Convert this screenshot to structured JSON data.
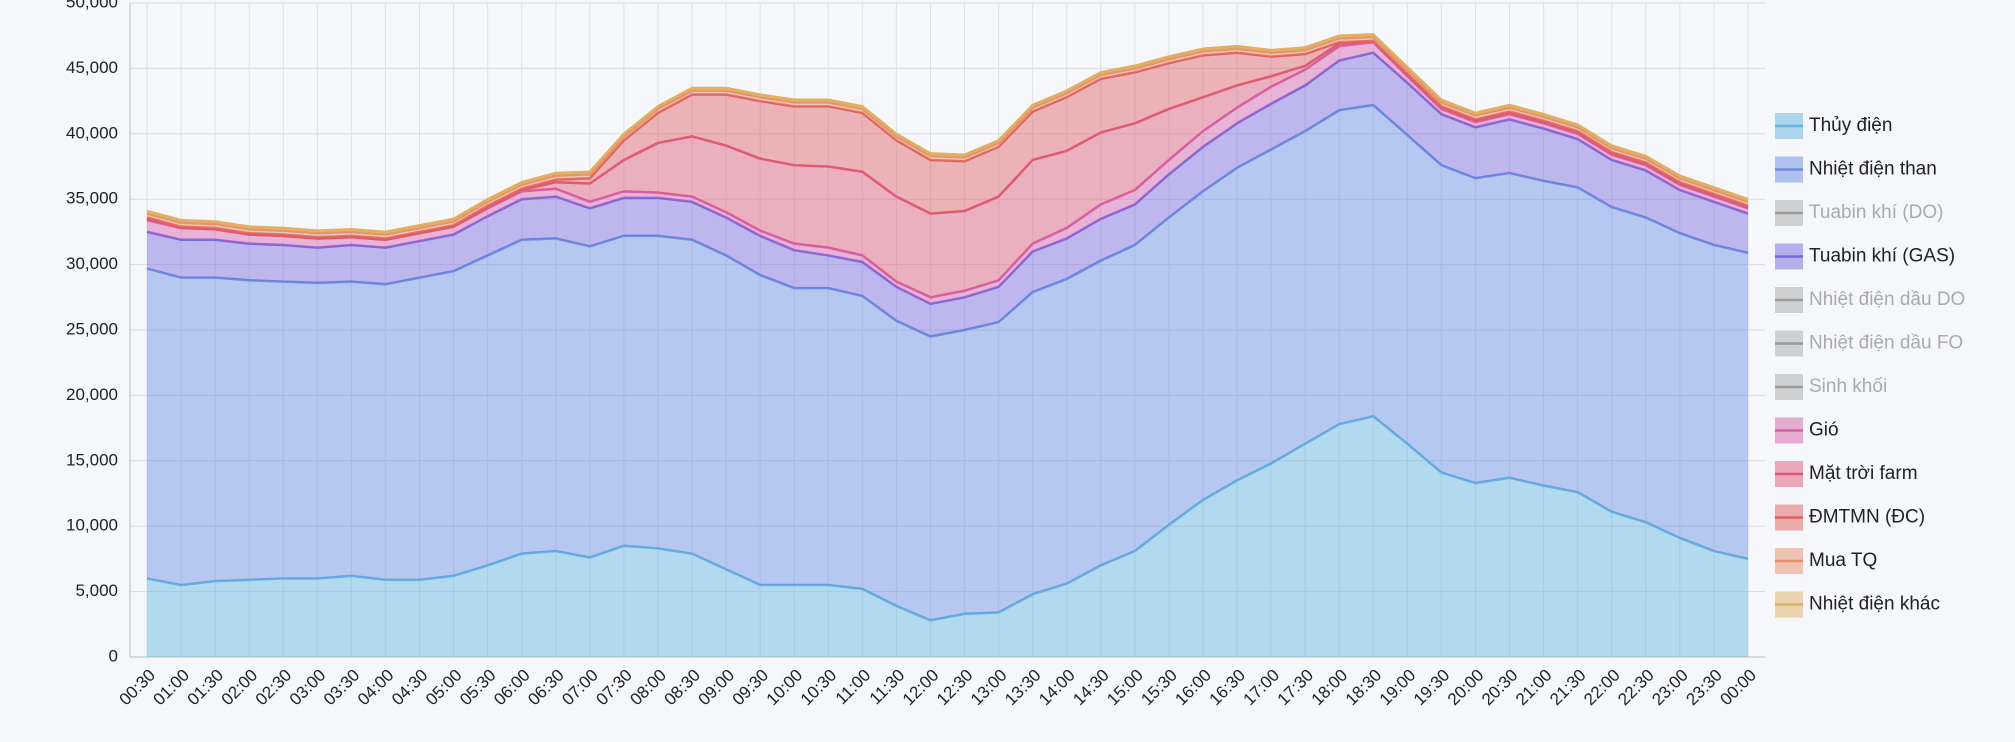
{
  "chart_data": {
    "type": "stacked-area",
    "categories": [
      "00:30",
      "01:00",
      "01:30",
      "02:00",
      "02:30",
      "03:00",
      "03:30",
      "04:00",
      "04:30",
      "05:00",
      "05:30",
      "06:00",
      "06:30",
      "07:00",
      "07:30",
      "08:00",
      "08:30",
      "09:00",
      "09:30",
      "10:00",
      "10:30",
      "11:00",
      "11:30",
      "12:00",
      "12:30",
      "13:00",
      "13:30",
      "14:00",
      "14:30",
      "15:00",
      "15:30",
      "16:00",
      "16:30",
      "17:00",
      "17:30",
      "18:00",
      "18:30",
      "19:00",
      "19:30",
      "20:00",
      "20:30",
      "21:00",
      "21:30",
      "22:00",
      "22:30",
      "23:00",
      "23:30",
      "00:00"
    ],
    "ylim": [
      0,
      50000
    ],
    "yticks": [
      0,
      {
        "value": 5000,
        "label": "5,000"
      },
      {
        "value": 10000,
        "label": "10,000"
      },
      {
        "value": 15000,
        "label": "15,000"
      },
      {
        "value": 20000,
        "label": "20,000"
      },
      {
        "value": 25000,
        "label": "25,000"
      },
      {
        "value": 30000,
        "label": "30,000"
      },
      {
        "value": 35000,
        "label": "35,000"
      },
      {
        "value": 40000,
        "label": "40,000"
      },
      {
        "value": 45000,
        "label": "45,000"
      },
      {
        "value": 50000,
        "label": "50,000"
      }
    ],
    "grid": true,
    "legend": "right",
    "series": [
      {
        "name": "Thủy điện",
        "color": "#63b3e0",
        "values": [
          6000,
          5500,
          5800,
          5900,
          6000,
          6000,
          6200,
          5900,
          5900,
          6200,
          7000,
          7900,
          8100,
          7600,
          8500,
          8300,
          7900,
          6700,
          5500,
          5500,
          5500,
          5200,
          3900,
          2800,
          3300,
          3400,
          4800,
          5600,
          7000,
          8100,
          10100,
          12000,
          13500,
          14800,
          16300,
          17800,
          18400,
          16300,
          14100,
          13300,
          13700,
          13100,
          12600,
          11100,
          10300,
          9100,
          8100,
          7500
        ]
      },
      {
        "name": "Nhiệt điện than",
        "color": "#6a8ee0",
        "values": [
          23700,
          23500,
          23200,
          22900,
          22700,
          22600,
          22500,
          22600,
          23100,
          23300,
          23700,
          24000,
          23900,
          23800,
          23700,
          23900,
          24000,
          24000,
          23700,
          22700,
          22700,
          22400,
          21800,
          21700,
          21700,
          22200,
          23100,
          23300,
          23300,
          23400,
          23500,
          23600,
          23900,
          24000,
          23900,
          24000,
          23800,
          23600,
          23500,
          23300,
          23300,
          23300,
          23300,
          23300,
          23300,
          23300,
          23400,
          23400
        ]
      },
      {
        "name": "Tuabin khí (DO)",
        "color": "#999999",
        "visible": false
      },
      {
        "name": "Tuabin khí (GAS)",
        "color": "#7a68de",
        "values": [
          2800,
          2900,
          2900,
          2800,
          2800,
          2700,
          2800,
          2800,
          2800,
          2800,
          3000,
          3100,
          3200,
          2900,
          2900,
          2900,
          2900,
          2900,
          3000,
          2900,
          2500,
          2600,
          2600,
          2500,
          2500,
          2700,
          3100,
          3100,
          3200,
          3100,
          3300,
          3400,
          3400,
          3500,
          3500,
          3800,
          4000,
          4000,
          3900,
          3900,
          4100,
          4000,
          3700,
          3600,
          3600,
          3300,
          3300,
          3000
        ]
      },
      {
        "name": "Nhiệt điện dầu DO",
        "color": "#999999",
        "visible": false
      },
      {
        "name": "Nhiệt điện dầu FO",
        "color": "#999999",
        "visible": false
      },
      {
        "name": "Sinh khối",
        "color": "#999999",
        "visible": false
      },
      {
        "name": "Gió",
        "color": "#d860a8",
        "values": [
          900,
          900,
          800,
          700,
          700,
          700,
          600,
          600,
          600,
          600,
          600,
          600,
          600,
          500,
          500,
          400,
          400,
          400,
          400,
          500,
          600,
          500,
          400,
          500,
          500,
          500,
          600,
          800,
          1100,
          1100,
          1100,
          1200,
          1200,
          1300,
          1200,
          1100,
          800,
          500,
          400,
          400,
          400,
          400,
          400,
          400,
          400,
          400,
          400,
          400
        ]
      },
      {
        "name": "Mặt trời farm",
        "color": "#e05878",
        "values": [
          100,
          0,
          0,
          0,
          0,
          0,
          0,
          0,
          0,
          0,
          100,
          100,
          500,
          1400,
          2400,
          3800,
          4600,
          5100,
          5500,
          6000,
          6200,
          6400,
          6500,
          6400,
          6100,
          6400,
          6400,
          5900,
          5500,
          5100,
          3900,
          2600,
          1700,
          800,
          300,
          200,
          100,
          100,
          100,
          100,
          100,
          100,
          100,
          100,
          100,
          100,
          100,
          100
        ]
      },
      {
        "name": "ĐMTMN (ĐC)",
        "color": "#e06060",
        "values": [
          100,
          100,
          100,
          100,
          100,
          100,
          100,
          100,
          100,
          100,
          100,
          100,
          200,
          400,
          1500,
          2300,
          3200,
          3900,
          4400,
          4500,
          4600,
          4500,
          4300,
          4100,
          3800,
          3800,
          3700,
          4100,
          4100,
          3900,
          3500,
          3200,
          2500,
          1500,
          900,
          100,
          0,
          100,
          100,
          100,
          100,
          100,
          100,
          100,
          100,
          100,
          100,
          100
        ]
      },
      {
        "name": "Mua TQ",
        "color": "#e8906a",
        "values": [
          300,
          300,
          300,
          300,
          300,
          300,
          300,
          300,
          300,
          300,
          300,
          300,
          300,
          300,
          300,
          300,
          300,
          300,
          300,
          300,
          300,
          300,
          300,
          300,
          300,
          300,
          300,
          300,
          300,
          300,
          300,
          300,
          300,
          300,
          300,
          300,
          300,
          300,
          300,
          300,
          300,
          300,
          300,
          300,
          300,
          300,
          300,
          300
        ]
      },
      {
        "name": "Nhiệt điện khác",
        "color": "#e0b060",
        "values": [
          200,
          200,
          200,
          200,
          200,
          200,
          200,
          200,
          200,
          200,
          200,
          200,
          200,
          200,
          200,
          200,
          200,
          200,
          200,
          200,
          200,
          200,
          200,
          200,
          200,
          200,
          200,
          200,
          200,
          200,
          200,
          200,
          200,
          200,
          200,
          200,
          200,
          200,
          200,
          200,
          200,
          200,
          200,
          200,
          200,
          200,
          200,
          200
        ]
      }
    ]
  }
}
